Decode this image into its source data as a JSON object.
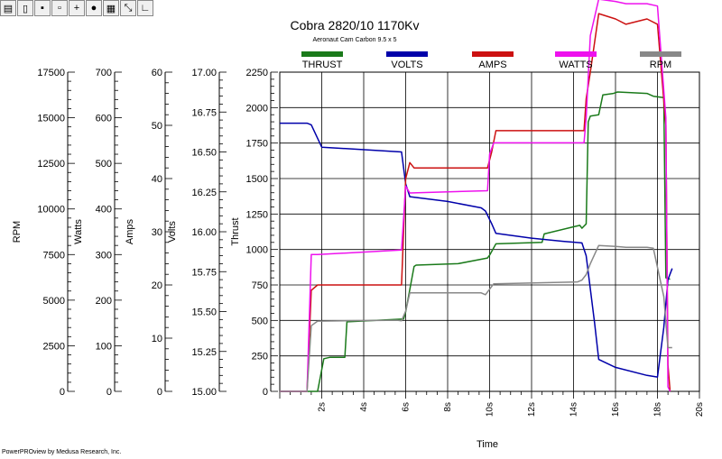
{
  "toolbar": {
    "icons": [
      "open-icon",
      "new-icon",
      "save-icon",
      "save-as-icon",
      "add-icon",
      "comment-icon",
      "chart-icon",
      "zoom-icon",
      "axis-icon"
    ]
  },
  "footer": "PowerPROview by Medusa Research, Inc.",
  "chart_data": {
    "type": "line",
    "title": "Cobra 2820/10 1170Kv",
    "subtitle": "Aeronaut Cam Carbon 9.5 x 5",
    "xlabel": "Time",
    "x_ticks": [
      "2s",
      "4s",
      "6s",
      "8s",
      "10s",
      "12s",
      "14s",
      "16s",
      "18s",
      "20s"
    ],
    "xlim": [
      0,
      20
    ],
    "grid": true,
    "legend_position": "top",
    "axes": [
      {
        "label": "RPM",
        "ylim": [
          0,
          17500
        ],
        "ticks": [
          "0",
          "2500",
          "5000",
          "7500",
          "10000",
          "12500",
          "15000",
          "17500"
        ]
      },
      {
        "label": "Watts",
        "ylim": [
          0,
          700
        ],
        "ticks": [
          "0",
          "100",
          "200",
          "300",
          "400",
          "500",
          "600",
          "700"
        ]
      },
      {
        "label": "Amps",
        "ylim": [
          0,
          60
        ],
        "ticks": [
          "0",
          "10",
          "20",
          "30",
          "40",
          "50",
          "60"
        ]
      },
      {
        "label": "Volts",
        "ylim": [
          15.0,
          17.0
        ],
        "ticks": [
          "15.00",
          "15.25",
          "15.50",
          "15.75",
          "16.00",
          "16.25",
          "16.50",
          "16.75",
          "17.00"
        ]
      },
      {
        "label": "Thrust",
        "ylim": [
          0,
          2250
        ],
        "ticks": [
          "0",
          "250",
          "500",
          "750",
          "1000",
          "1250",
          "1500",
          "1750",
          "2000",
          "2250"
        ]
      }
    ],
    "series": [
      {
        "name": "THRUST",
        "axis": 4,
        "color": "#1a7a1a",
        "x": [
          0,
          1.8,
          2.1,
          2.4,
          3.1,
          3.2,
          5.9,
          6.0,
          6.4,
          6.5,
          8.5,
          9.9,
          10.0,
          10.3,
          12.5,
          12.6,
          14.0,
          14.3,
          14.4,
          14.6,
          14.7,
          14.8,
          15.2,
          15.4,
          15.9,
          16.1,
          17.5,
          17.8,
          18.3,
          18.4,
          18.6
        ],
        "y": [
          0,
          0,
          230,
          240,
          240,
          490,
          510,
          560,
          880,
          890,
          900,
          940,
          960,
          1040,
          1050,
          1110,
          1160,
          1170,
          1150,
          1180,
          1900,
          1940,
          1950,
          2090,
          2100,
          2110,
          2100,
          2080,
          2070,
          800,
          790
        ]
      },
      {
        "name": "VOLTS",
        "axis": 3,
        "color": "#0000aa",
        "x": [
          0,
          1.3,
          1.5,
          2.0,
          5.8,
          6.0,
          6.2,
          8.0,
          9.6,
          9.8,
          10.1,
          10.3,
          12.0,
          13.5,
          14.4,
          14.6,
          15.0,
          15.2,
          16.0,
          17.5,
          18.0,
          18.3,
          18.5,
          18.7
        ],
        "y": [
          16.68,
          16.68,
          16.67,
          16.53,
          16.5,
          16.3,
          16.22,
          16.19,
          16.15,
          16.13,
          16.05,
          15.99,
          15.96,
          15.94,
          15.93,
          15.85,
          15.43,
          15.2,
          15.15,
          15.1,
          15.09,
          15.4,
          15.7,
          15.77
        ]
      },
      {
        "name": "AMPS",
        "axis": 2,
        "color": "#cc1111",
        "x": [
          0,
          1.3,
          1.5,
          1.8,
          5.8,
          6.0,
          6.2,
          6.4,
          9.9,
          10.1,
          10.3,
          14.5,
          14.6,
          14.8,
          15.2,
          16.0,
          16.5,
          17.5,
          18.0,
          18.4,
          18.5,
          18.6
        ],
        "y": [
          0,
          0,
          19,
          20,
          20,
          40,
          43,
          42,
          42,
          45,
          49,
          49,
          55,
          60,
          71,
          70,
          69,
          70,
          69,
          50,
          5,
          0
        ]
      },
      {
        "name": "WATTS",
        "axis": 1,
        "color": "#ee11ee",
        "x": [
          0,
          1.3,
          1.5,
          1.8,
          5.8,
          6.0,
          6.2,
          9.9,
          10.0,
          10.2,
          14.5,
          14.6,
          14.8,
          15.2,
          16.0,
          16.5,
          17.5,
          18.0,
          18.4,
          18.5,
          18.6
        ],
        "y": [
          0,
          0,
          300,
          300,
          310,
          450,
          435,
          440,
          520,
          545,
          545,
          600,
          780,
          860,
          855,
          850,
          850,
          845,
          600,
          10,
          0
        ]
      },
      {
        "name": "RPM",
        "axis": 0,
        "color": "#888888",
        "x": [
          0,
          1.3,
          1.5,
          1.8,
          5.6,
          5.8,
          6.0,
          6.2,
          9.6,
          9.8,
          10.2,
          14.2,
          14.4,
          14.6,
          14.8,
          15.2,
          16.0,
          16.5,
          17.5,
          17.8,
          18.3,
          18.5,
          18.7
        ],
        "y": [
          0,
          0,
          3600,
          3850,
          3900,
          3870,
          4400,
          5400,
          5400,
          5300,
          5900,
          6000,
          6100,
          6400,
          7000,
          8000,
          7950,
          7900,
          7900,
          7850,
          5200,
          2400,
          2400
        ]
      }
    ]
  }
}
